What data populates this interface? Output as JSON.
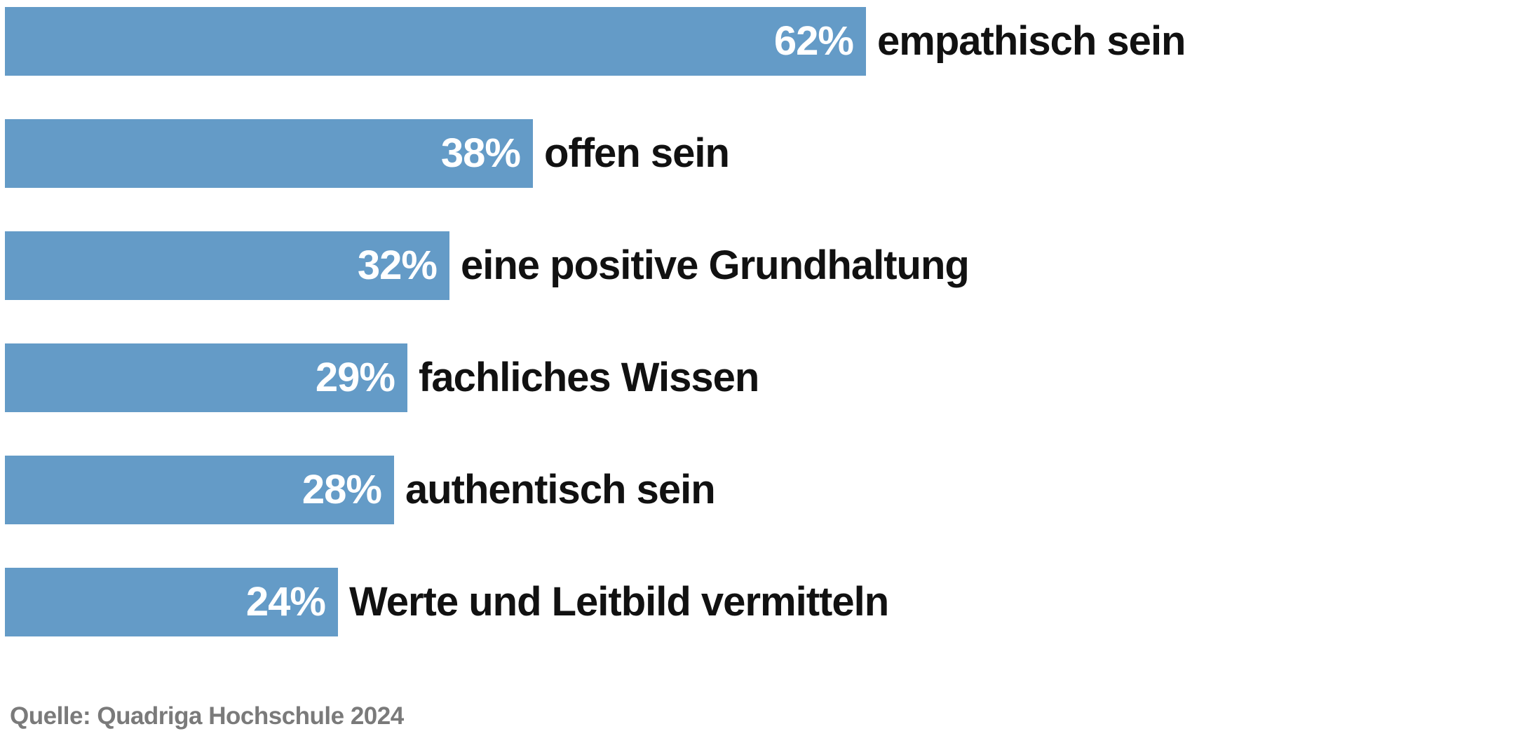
{
  "chart_data": {
    "type": "bar",
    "orientation": "horizontal",
    "categories": [
      "empathisch sein",
      "offen sein",
      "eine positive Grundhaltung",
      "fachliches Wissen",
      "authentisch sein",
      "Werte und Leitbild vermitteln"
    ],
    "values": [
      62,
      38,
      32,
      29,
      28,
      24
    ],
    "value_suffix": "%",
    "title": "",
    "xlabel": "",
    "ylabel": "",
    "xlim": [
      0,
      109
    ],
    "grid": false,
    "legend": false,
    "source": "Quelle: Quadriga Hochschule 2024",
    "bar_color": "#649bc7",
    "value_label_color": "#ffffff",
    "category_label_color": "#111111",
    "source_color": "#7a7a7a",
    "background_color": "#ffffff"
  }
}
